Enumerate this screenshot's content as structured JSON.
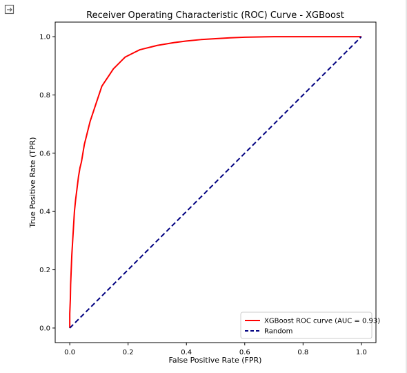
{
  "output_cell": {
    "icon": "output-expand-icon"
  },
  "chart_data": {
    "type": "line",
    "title": "Receiver Operating Characteristic (ROC) Curve - XGBoost",
    "xlabel": "False Positive Rate (FPR)",
    "ylabel": "True Positive Rate (TPR)",
    "xlim": [
      -0.05,
      1.05
    ],
    "ylim": [
      -0.05,
      1.05
    ],
    "xticks": [
      "0.0",
      "0.2",
      "0.4",
      "0.6",
      "0.8",
      "1.0"
    ],
    "yticks": [
      "0.0",
      "0.2",
      "0.4",
      "0.6",
      "0.8",
      "1.0"
    ],
    "grid": false,
    "legend_position": "bottom-right",
    "series": [
      {
        "name": "XGBoost ROC curve (AUC = 0.93)",
        "style": "solid",
        "color": "#ff0000",
        "x": [
          0,
          0,
          0.002,
          0.003,
          0.005,
          0.007,
          0.01,
          0.013,
          0.016,
          0.02,
          0.025,
          0.03,
          0.035,
          0.04,
          0.045,
          0.05,
          0.055,
          0.06,
          0.07,
          0.08,
          0.09,
          0.1,
          0.11,
          0.12,
          0.13,
          0.14,
          0.15,
          0.16,
          0.17,
          0.18,
          0.19,
          0.2,
          0.21,
          0.22,
          0.24,
          0.26,
          0.28,
          0.3,
          0.33,
          0.36,
          0.4,
          0.45,
          0.5,
          0.55,
          0.6,
          0.7,
          0.8,
          0.9,
          1.0
        ],
        "y": [
          0,
          0.05,
          0.1,
          0.15,
          0.2,
          0.25,
          0.3,
          0.35,
          0.4,
          0.44,
          0.48,
          0.52,
          0.55,
          0.57,
          0.6,
          0.63,
          0.65,
          0.67,
          0.71,
          0.74,
          0.77,
          0.8,
          0.83,
          0.845,
          0.86,
          0.875,
          0.89,
          0.9,
          0.91,
          0.92,
          0.93,
          0.935,
          0.94,
          0.945,
          0.955,
          0.96,
          0.965,
          0.97,
          0.975,
          0.98,
          0.985,
          0.99,
          0.993,
          0.996,
          0.998,
          1.0,
          1.0,
          1.0,
          1.0
        ]
      },
      {
        "name": "Random",
        "style": "dashed",
        "color": "#000080",
        "x": [
          0,
          1
        ],
        "y": [
          0,
          1
        ]
      }
    ]
  }
}
